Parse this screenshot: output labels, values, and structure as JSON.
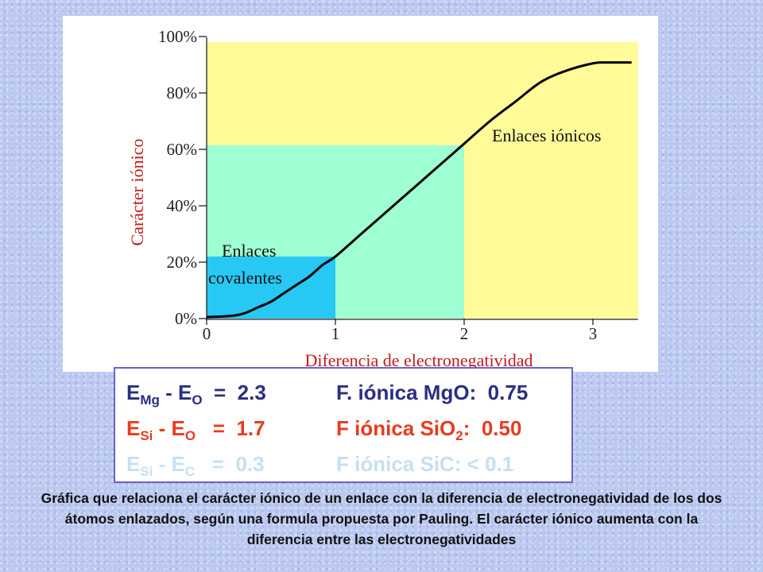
{
  "chart_data": {
    "type": "line",
    "title": "",
    "xlabel": "Diferencia de electronegatividad",
    "ylabel": "Carácter iónico",
    "xlim": [
      0,
      3.35
    ],
    "ylim": [
      0,
      100
    ],
    "x_ticks": [
      "0",
      "1",
      "2",
      "3"
    ],
    "y_ticks": [
      "0%",
      "20%",
      "40%",
      "60%",
      "80%",
      "100%"
    ],
    "series": [
      {
        "x": [
          0,
          0.2,
          0.3,
          0.4,
          0.5,
          0.6,
          0.7,
          0.8,
          0.9,
          1.0,
          1.2,
          1.4,
          1.6,
          1.8,
          2.0,
          2.2,
          2.4,
          2.6,
          2.8,
          3.0,
          3.1,
          3.2,
          3.3
        ],
        "y": [
          0.5,
          1,
          2,
          4,
          6,
          9,
          12,
          15,
          19,
          22,
          30,
          38,
          46,
          54,
          62,
          70,
          77,
          84,
          88,
          90.5,
          90.8,
          90.8,
          90.8
        ]
      }
    ],
    "regions": [
      {
        "label": "Enlaces covalentes",
        "x": [
          0,
          1
        ],
        "y": [
          0,
          22
        ],
        "color": "#27c8f4"
      },
      {
        "label": "",
        "x": [
          0,
          2
        ],
        "y": [
          0,
          61.5
        ],
        "color": "#9effd2"
      },
      {
        "label": "Enlaces iónicos",
        "x": [
          0,
          3.35
        ],
        "y": [
          0,
          98
        ],
        "color": "#fffb99"
      }
    ],
    "grid": false,
    "colors": {
      "curve": "#000000",
      "xlabel": "#c21a1a",
      "ylabel": "#c21a1a",
      "axis_text": "#222222"
    }
  },
  "formulas": [
    {
      "lhs": {
        "a": "E",
        "a_sub": "Mg",
        "sep": " - ",
        "b": "E",
        "b_sub": "O",
        "eq": "  =  2.3"
      },
      "rhs": {
        "text": "F. iónica MgO:  0.75",
        "text_after_sub": "",
        "sub": ""
      },
      "color": "#2b2e82"
    },
    {
      "lhs": {
        "a": "E",
        "a_sub": "Si",
        "sep": " - ",
        "b": "E",
        "b_sub": "O",
        "eq": "   =  1.7"
      },
      "rhs": {
        "text": "F iónica SiO",
        "sub": "2",
        "text_after_sub": ":  0.50"
      },
      "color": "#e83b1e"
    },
    {
      "lhs": {
        "a": "E",
        "a_sub": "Si",
        "sep": " - ",
        "b": "E",
        "b_sub": "C",
        "eq": "   =  0.3"
      },
      "rhs": {
        "text": "F iónica SiC: < 0.1",
        "text_after_sub": "",
        "sub": ""
      },
      "color": "#c6e0f0"
    }
  ],
  "caption": "Gráfica que relaciona el carácter iónico de un enlace con la diferencia de electronegatividad de los dos átomos enlazados, según una formula propuesta por Pauling. El carácter iónico aumenta con la diferencia entre las electronegatividades"
}
